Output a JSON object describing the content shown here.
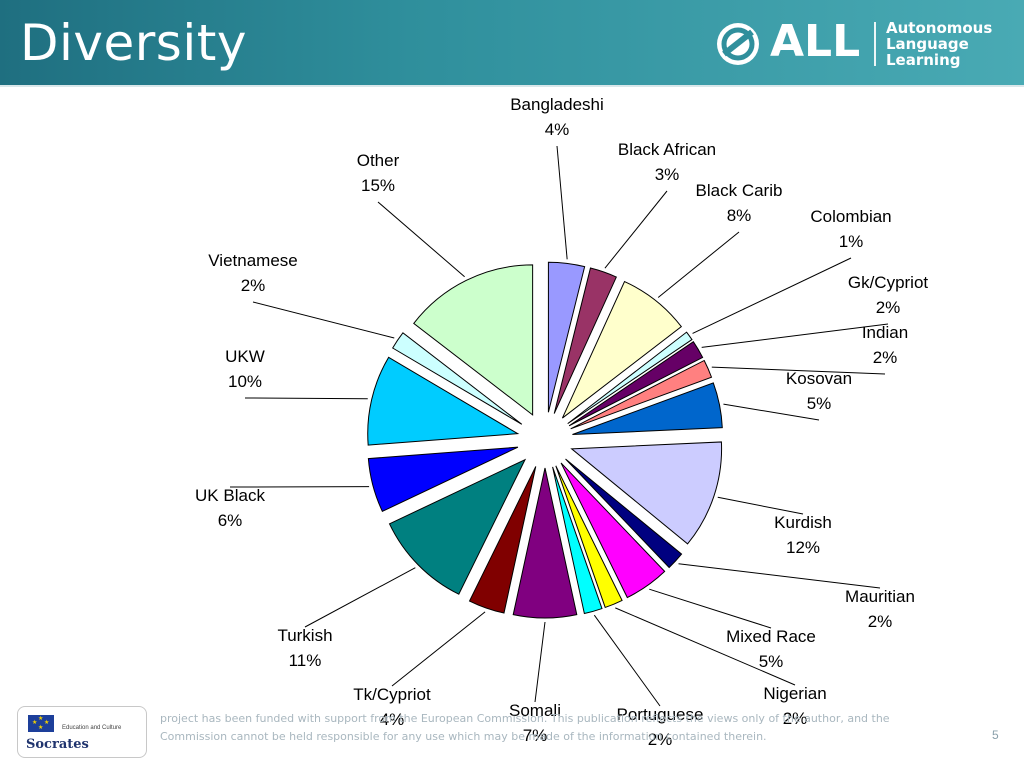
{
  "slide": {
    "title": "Diversity",
    "logo_text": "ALL",
    "logo_subtitle": [
      "Autonomous",
      "Language",
      "Learning"
    ],
    "footer_badge_top": "Education and Culture",
    "footer_badge_name": "Socrates",
    "disclaimer": "project has been funded with support from the European Commission. This publication reflects the views only of the author, and the Commission cannot be held responsible for any use which may be made of the information contained therein.",
    "page_number": "5"
  },
  "chart_data": {
    "type": "pie",
    "exploded": true,
    "categories": [
      "Bangladeshi",
      "Black African",
      "Black Carib",
      "Colombian",
      "Gk/Cypriot",
      "Indian",
      "Kosovan",
      "Kurdish",
      "Mauritian",
      "Mixed Race",
      "Nigerian",
      "Portuguese",
      "Somali",
      "Tk/Cypriot",
      "Turkish",
      "UK Black",
      "UKW",
      "Vietnamese",
      "Other"
    ],
    "values": [
      4,
      3,
      8,
      1,
      2,
      2,
      5,
      12,
      2,
      5,
      2,
      2,
      7,
      4,
      11,
      6,
      10,
      2,
      15
    ],
    "labels": [
      "4%",
      "3%",
      "8%",
      "1%",
      "2%",
      "2%",
      "5%",
      "12%",
      "2%",
      "5%",
      "2%",
      "2%",
      "7%",
      "4%",
      "11%",
      "6%",
      "10%",
      "2%",
      "15%"
    ],
    "colors": [
      "#9999ff",
      "#993366",
      "#ffffcc",
      "#ccffff",
      "#660066",
      "#ff8080",
      "#0066cc",
      "#ccccff",
      "#000080",
      "#ff00ff",
      "#ffff00",
      "#00ffff",
      "#800080",
      "#800000",
      "#008080",
      "#0000ff",
      "#00ccff",
      "#ccffff",
      "#ccffcc"
    ]
  }
}
